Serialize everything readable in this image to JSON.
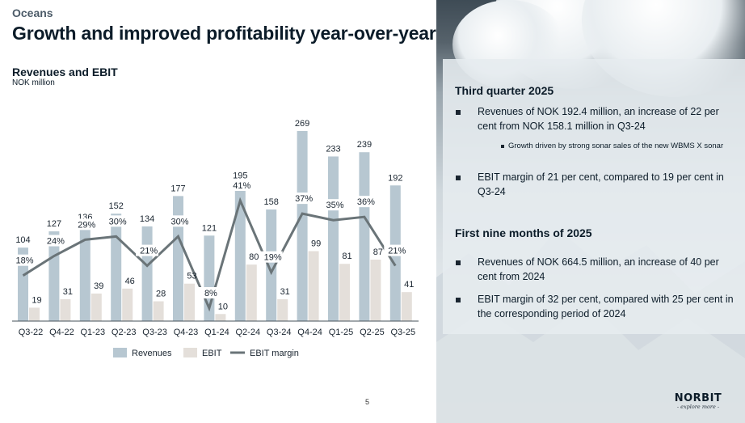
{
  "header": {
    "section": "Oceans",
    "title": "Growth and improved profitability year-over-year"
  },
  "chart_header": {
    "title": "Revenues and EBIT",
    "subtitle": "NOK million"
  },
  "chart_data": {
    "type": "bar",
    "title": "Revenues and EBIT",
    "subtitle": "NOK million",
    "xlabel": "",
    "ylabel": "NOK million",
    "categories": [
      "Q3-22",
      "Q4-22",
      "Q1-23",
      "Q2-23",
      "Q3-23",
      "Q4-23",
      "Q1-24",
      "Q2-24",
      "Q3-24",
      "Q4-24",
      "Q1-25",
      "Q2-25",
      "Q3-25"
    ],
    "series": [
      {
        "name": "Revenues",
        "type": "bar",
        "color": "#b7c7d1",
        "values": [
          104,
          127,
          136,
          152,
          134,
          177,
          121,
          195,
          158,
          269,
          233,
          239,
          192
        ]
      },
      {
        "name": "EBIT",
        "type": "bar",
        "color": "#e4dfda",
        "values": [
          19,
          31,
          39,
          46,
          28,
          53,
          10,
          80,
          31,
          99,
          81,
          87,
          41
        ]
      },
      {
        "name": "EBIT margin",
        "type": "line",
        "color": "#6a7478",
        "unit": "%",
        "values": [
          18,
          24,
          29,
          30,
          21,
          30,
          8,
          41,
          19,
          37,
          35,
          36,
          21
        ]
      }
    ],
    "ylim": [
      0,
      280
    ],
    "grid": false,
    "legend": "bottom-center",
    "legend_entries": [
      "Revenues",
      "EBIT",
      "EBIT margin"
    ]
  },
  "info_panel": {
    "sections": [
      {
        "heading": "Third quarter 2025",
        "bullets": [
          {
            "text": "Revenues of NOK 192.4 million, an increase of 22 per cent from NOK 158.1 million in Q3-24",
            "sub": [
              "Growth driven by strong sonar sales of the new WBMS X sonar"
            ]
          },
          {
            "text": "EBIT margin of 21 per cent, compared to 19 per cent in Q3-24"
          }
        ]
      },
      {
        "heading": "First nine months of 2025",
        "bullets": [
          {
            "text": "Revenues of NOK 664.5 million, an increase of 40 per cent from 2024"
          },
          {
            "text": "EBIT margin of 32 per cent, compared with 25 per cent in the corresponding period of 2024"
          }
        ]
      }
    ]
  },
  "footer": {
    "page_number": "5",
    "logo_name": "NORBIT",
    "logo_tagline": "- explore more -"
  }
}
